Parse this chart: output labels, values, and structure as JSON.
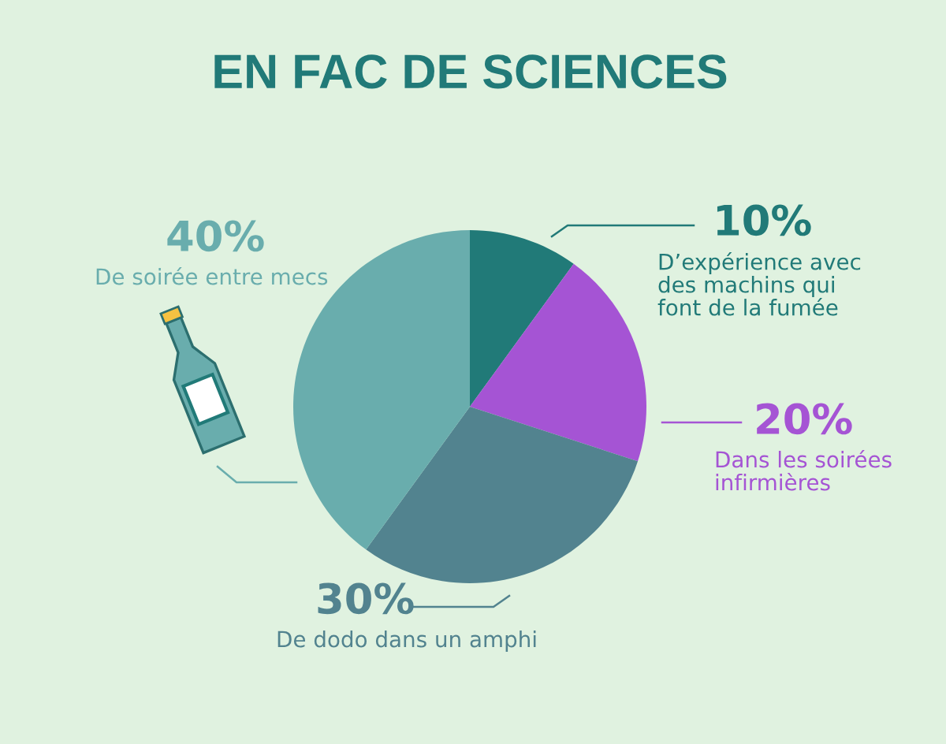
{
  "chart_data": {
    "type": "pie",
    "title": "EN FAC DE SCIENCES",
    "categories": [
      "D’expérience avec\ndes machins qui\nfont de la fumée",
      "Dans les soirées\ninfirmières",
      "De dodo dans un amphi",
      "De soirée entre mecs"
    ],
    "values": [
      10,
      20,
      30,
      40
    ],
    "colors": [
      "#217a78",
      "#a554d4",
      "#52838f",
      "#69adad"
    ],
    "value_labels": [
      "10%",
      "20%",
      "30%",
      "40%"
    ]
  }
}
